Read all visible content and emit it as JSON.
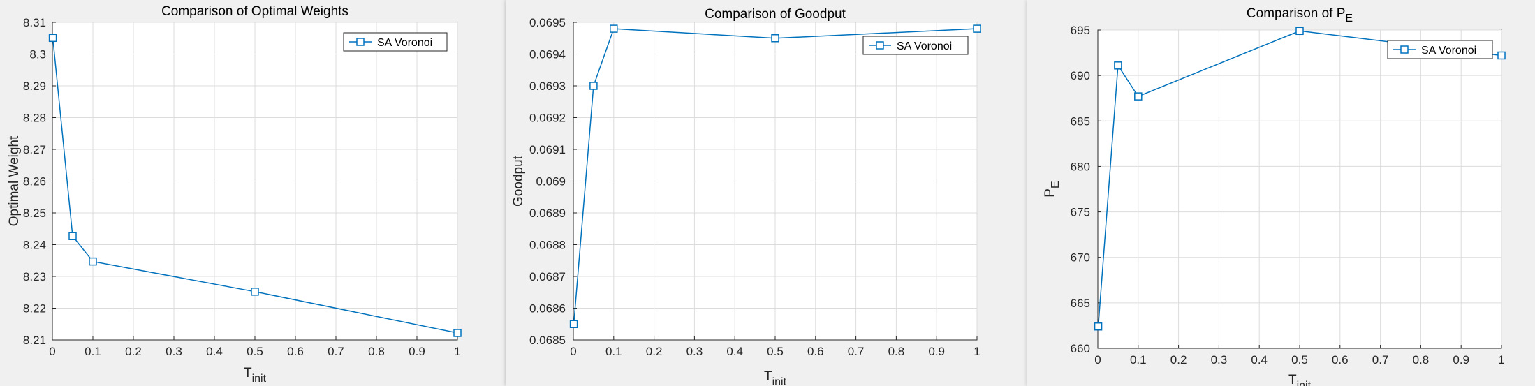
{
  "colors": {
    "series": "#0072BD",
    "figure_bg": "#f0f0f0",
    "axes_bg": "#ffffff",
    "grid": "#dcdcdc"
  },
  "chart_data": [
    {
      "type": "line",
      "title": "Comparison of Optimal Weights",
      "title_sub": "",
      "xlabel": "T",
      "xlabel_sub": "init",
      "ylabel": "Optimal Weight",
      "ylabel_sub": "",
      "xlim": [
        0,
        1
      ],
      "ylim": [
        8.21,
        8.31
      ],
      "xticks": [
        "0",
        "0.1",
        "0.2",
        "0.3",
        "0.4",
        "0.5",
        "0.6",
        "0.7",
        "0.8",
        "0.9",
        "1"
      ],
      "yticks": [
        "8.21",
        "8.22",
        "8.23",
        "8.24",
        "8.25",
        "8.26",
        "8.27",
        "8.28",
        "8.29",
        "8.3",
        "8.31"
      ],
      "grid": true,
      "legend": "top-right",
      "series": [
        {
          "name": "SA Voronoi",
          "marker": "square",
          "x": [
            0.001,
            0.05,
            0.1,
            0.5,
            1
          ],
          "y": [
            8.3051,
            8.2427,
            8.2347,
            8.2252,
            8.2122
          ]
        }
      ]
    },
    {
      "type": "line",
      "title": "Comparison of Goodput",
      "title_sub": "",
      "xlabel": "T",
      "xlabel_sub": "init",
      "ylabel": "Goodput",
      "ylabel_sub": "",
      "xlim": [
        0,
        1
      ],
      "ylim": [
        0.0685,
        0.0695
      ],
      "xticks": [
        "0",
        "0.1",
        "0.2",
        "0.3",
        "0.4",
        "0.5",
        "0.6",
        "0.7",
        "0.8",
        "0.9",
        "1"
      ],
      "yticks": [
        "0.0685",
        "0.0686",
        "0.0687",
        "0.0688",
        "0.0689",
        "0.069",
        "0.0691",
        "0.0692",
        "0.0693",
        "0.0694",
        "0.0695"
      ],
      "grid": true,
      "legend": "top-right",
      "series": [
        {
          "name": "SA Voronoi",
          "marker": "square",
          "x": [
            0.001,
            0.05,
            0.1,
            0.5,
            1
          ],
          "y": [
            0.06855,
            0.0693,
            0.06948,
            0.06945,
            0.06948
          ]
        }
      ]
    },
    {
      "type": "line",
      "title": "Comparison of P",
      "title_sub": "E",
      "xlabel": "T",
      "xlabel_sub": "init",
      "ylabel": "P",
      "ylabel_sub": "E",
      "xlim": [
        0,
        1
      ],
      "ylim": [
        660,
        695
      ],
      "xticks": [
        "0",
        "0.1",
        "0.2",
        "0.3",
        "0.4",
        "0.5",
        "0.6",
        "0.7",
        "0.8",
        "0.9",
        "1"
      ],
      "yticks": [
        "660",
        "665",
        "670",
        "675",
        "680",
        "685",
        "690",
        "695"
      ],
      "grid": true,
      "legend": "top-right",
      "series": [
        {
          "name": "SA Voronoi",
          "marker": "square",
          "x": [
            0.001,
            0.05,
            0.1,
            0.5,
            1
          ],
          "y": [
            662.4,
            691.1,
            687.7,
            694.9,
            692.2
          ]
        }
      ]
    }
  ]
}
